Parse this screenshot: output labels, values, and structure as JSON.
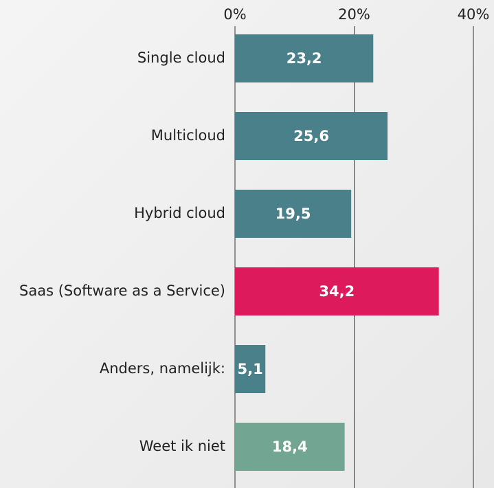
{
  "chart_data": {
    "type": "bar",
    "orientation": "horizontal",
    "categories": [
      "Single cloud",
      "Multicloud",
      "Hybrid cloud",
      "Saas (Software as a Service)",
      "Anders, namelijk:",
      "Weet ik niet"
    ],
    "values": [
      23.2,
      25.6,
      19.5,
      34.2,
      5.1,
      18.4
    ],
    "value_labels": [
      "23,2",
      "25,6",
      "19,5",
      "34,2",
      "5,1",
      "18,4"
    ],
    "colors": [
      "#4a808a",
      "#4a808a",
      "#4a808a",
      "#dc1a5c",
      "#4a808a",
      "#72a592"
    ],
    "xlim": [
      0,
      40
    ],
    "xticks": [
      {
        "value": 0,
        "label": "0%"
      },
      {
        "value": 20,
        "label": "20%"
      },
      {
        "value": 40,
        "label": "40%"
      }
    ],
    "grid": true
  }
}
